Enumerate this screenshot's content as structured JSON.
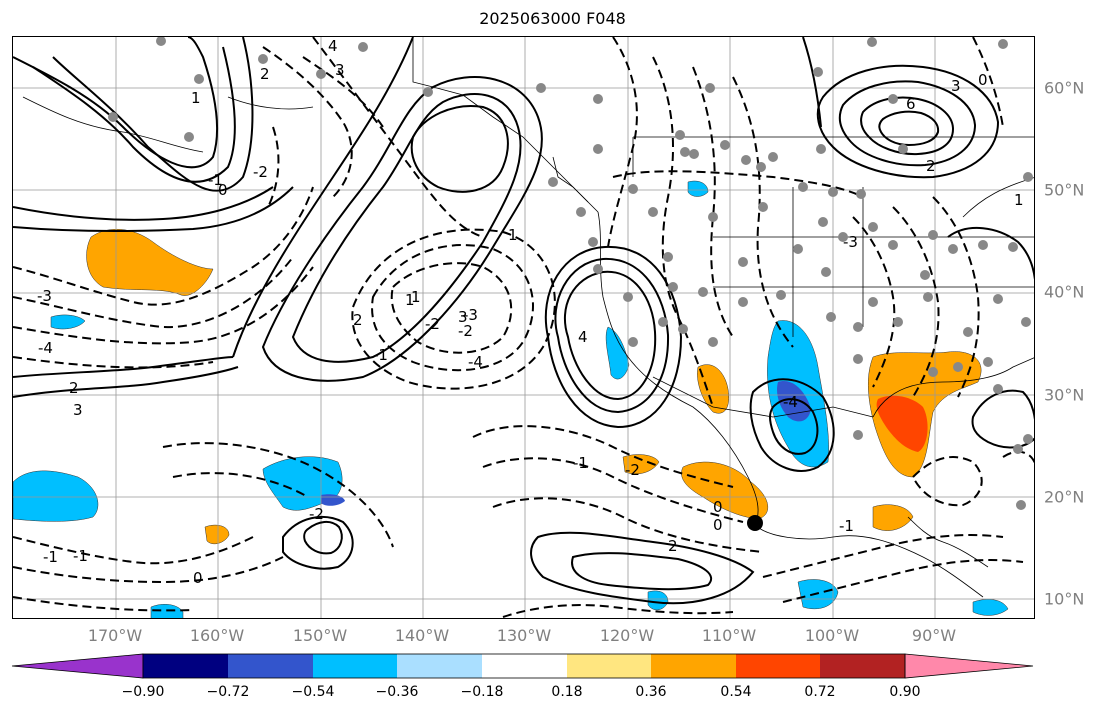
{
  "title": "2025063000 F048",
  "lon_labels": [
    "170°W",
    "160°W",
    "150°W",
    "140°W",
    "130°W",
    "120°W",
    "110°W",
    "100°W",
    "90°W"
  ],
  "lat_labels": [
    "60°N",
    "50°N",
    "40°N",
    "30°N",
    "20°N",
    "10°N"
  ],
  "colorbar": {
    "colors": [
      "#9933cc",
      "#000080",
      "#3355cc",
      "#00bfff",
      "#aadfff",
      "#ffffff",
      "#ffe680",
      "#ffa500",
      "#ff4500",
      "#b22222",
      "#ff88aa"
    ],
    "ticks": [
      "−0.90",
      "−0.72",
      "−0.54",
      "−0.36",
      "−0.18",
      "0.18",
      "0.36",
      "0.54",
      "0.72",
      "0.90"
    ]
  },
  "contour_labels": [
    "4",
    "3",
    "2",
    "1",
    "0",
    "-1",
    "-2",
    "-3",
    "-4",
    "6",
    "3",
    "2",
    "1",
    "0",
    "-1",
    "-2",
    "-3",
    "-4",
    "2",
    "3",
    "0",
    "-1",
    "1",
    "-1",
    "-2",
    "2",
    "1",
    "0",
    "-1",
    "-2",
    "3",
    "4",
    "2",
    "1",
    "0",
    "-1",
    "-2",
    "-3",
    "-4"
  ],
  "stations": "gray-dots",
  "symbols": {
    "station": "gray-dot",
    "hurricane": "black-dot"
  }
}
